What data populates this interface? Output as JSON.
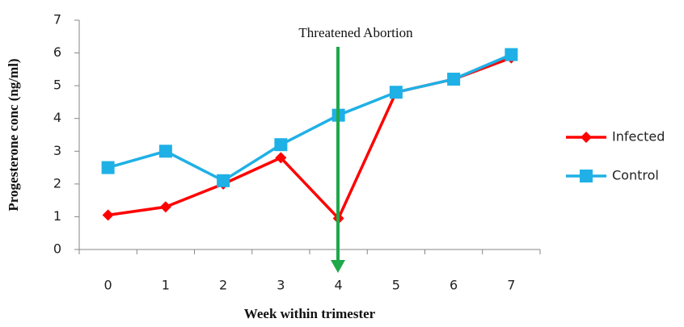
{
  "chart_data": {
    "type": "line",
    "annotation": "Threatened Abortion",
    "xlabel": "Week within trimester",
    "ylabel": "Progesterone conc (ng/ml)",
    "categories": [
      "0",
      "1",
      "2",
      "3",
      "4",
      "5",
      "6",
      "7"
    ],
    "series": [
      {
        "name": "Infected",
        "color": "#ff0000",
        "values": [
          1.05,
          1.3,
          2.0,
          2.8,
          0.95,
          4.8,
          5.2,
          5.85
        ]
      },
      {
        "name": "Control",
        "color": "#1fb0e6",
        "values": [
          2.5,
          3.0,
          2.1,
          3.2,
          4.1,
          4.8,
          5.2,
          5.95
        ]
      }
    ],
    "ylim": [
      0,
      7
    ],
    "yticks": [
      0,
      1,
      2,
      3,
      4,
      5,
      6,
      7
    ],
    "grid": false,
    "legend": "right"
  }
}
